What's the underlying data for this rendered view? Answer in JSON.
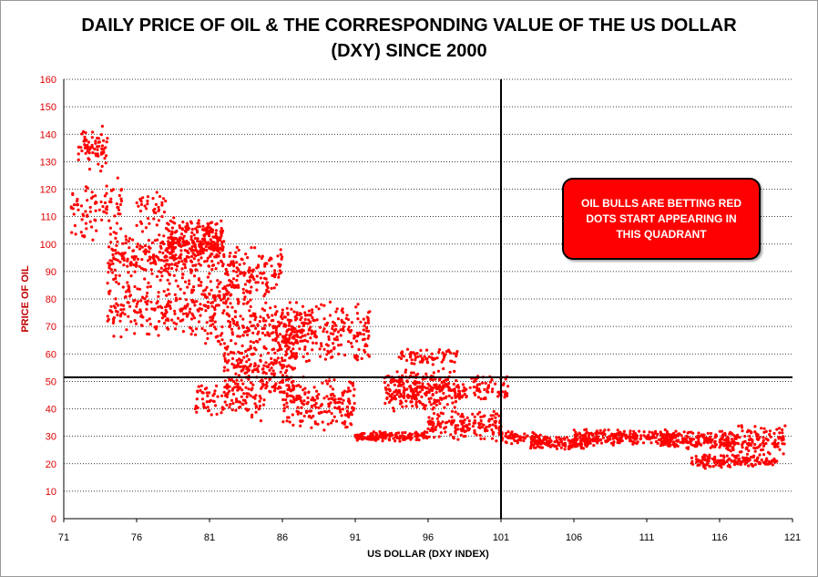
{
  "chart_data": {
    "type": "scatter",
    "title": "DAILY PRICE OF OIL & THE CORRESPONDING VALUE OF THE US DOLLAR (DXY) SINCE 2000",
    "title_lines": [
      "DAILY PRICE OF OIL & THE CORRESPONDING VALUE OF THE US DOLLAR",
      "(DXY) SINCE 2000"
    ],
    "xlabel": "US DOLLAR (DXY INDEX)",
    "ylabel": "PRICE OF OIL",
    "xlim": [
      71,
      121
    ],
    "ylim": [
      0,
      160
    ],
    "x_ticks": [
      "71",
      "76",
      "81",
      "86",
      "91",
      "96",
      "101",
      "106",
      "111",
      "116",
      "121"
    ],
    "y_ticks": [
      "0",
      "10",
      "20",
      "30",
      "40",
      "50",
      "60",
      "70",
      "80",
      "90",
      "100",
      "110",
      "120",
      "130",
      "140",
      "150",
      "160"
    ],
    "grid": "horizontal dotted",
    "reference_lines": {
      "vertical_x": 101,
      "horizontal_y": 51.5
    },
    "annotation": "OIL BULLS ARE BETTING RED DOTS START APPEARING IN THIS QUADRANT",
    "point_color": "#ff0000",
    "clusters": [
      {
        "x": [
          72,
          74
        ],
        "y": [
          125,
          145
        ],
        "n": 70
      },
      {
        "x": [
          71.5,
          75
        ],
        "y": [
          100,
          125
        ],
        "n": 90
      },
      {
        "x": [
          74,
          79
        ],
        "y": [
          85,
          105
        ],
        "n": 180
      },
      {
        "x": [
          74,
          79
        ],
        "y": [
          65,
          88
        ],
        "n": 150
      },
      {
        "x": [
          76,
          78
        ],
        "y": [
          105,
          123
        ],
        "n": 40
      },
      {
        "x": [
          78,
          82
        ],
        "y": [
          90,
          110
        ],
        "n": 320
      },
      {
        "x": [
          79,
          84
        ],
        "y": [
          60,
          95
        ],
        "n": 260
      },
      {
        "x": [
          82,
          86
        ],
        "y": [
          80,
          100
        ],
        "n": 110
      },
      {
        "x": [
          82,
          87
        ],
        "y": [
          42,
          68
        ],
        "n": 240
      },
      {
        "x": [
          84,
          87.5
        ],
        "y": [
          60,
          80
        ],
        "n": 120
      },
      {
        "x": [
          80,
          85
        ],
        "y": [
          35,
          50
        ],
        "n": 100
      },
      {
        "x": [
          86,
          92
        ],
        "y": [
          55,
          80
        ],
        "n": 240
      },
      {
        "x": [
          86,
          91
        ],
        "y": [
          32,
          52
        ],
        "n": 200
      },
      {
        "x": [
          91,
          96
        ],
        "y": [
          28,
          32
        ],
        "n": 160
      },
      {
        "x": [
          93,
          98
        ],
        "y": [
          38,
          55
        ],
        "n": 280
      },
      {
        "x": [
          94,
          98
        ],
        "y": [
          56,
          62
        ],
        "n": 70
      },
      {
        "x": [
          96,
          101
        ],
        "y": [
          28,
          40
        ],
        "n": 160
      },
      {
        "x": [
          98,
          101.5
        ],
        "y": [
          42,
          53
        ],
        "n": 80
      },
      {
        "x": [
          101,
          104
        ],
        "y": [
          27,
          32
        ],
        "n": 70
      },
      {
        "x": [
          103,
          107
        ],
        "y": [
          25,
          30
        ],
        "n": 140
      },
      {
        "x": [
          106,
          113
        ],
        "y": [
          26,
          33
        ],
        "n": 230
      },
      {
        "x": [
          112,
          117
        ],
        "y": [
          25,
          32
        ],
        "n": 170
      },
      {
        "x": [
          114,
          118
        ],
        "y": [
          18,
          24
        ],
        "n": 110
      },
      {
        "x": [
          116,
          120.5
        ],
        "y": [
          22,
          35
        ],
        "n": 150
      },
      {
        "x": [
          117,
          120
        ],
        "y": [
          19,
          23
        ],
        "n": 60
      }
    ]
  }
}
